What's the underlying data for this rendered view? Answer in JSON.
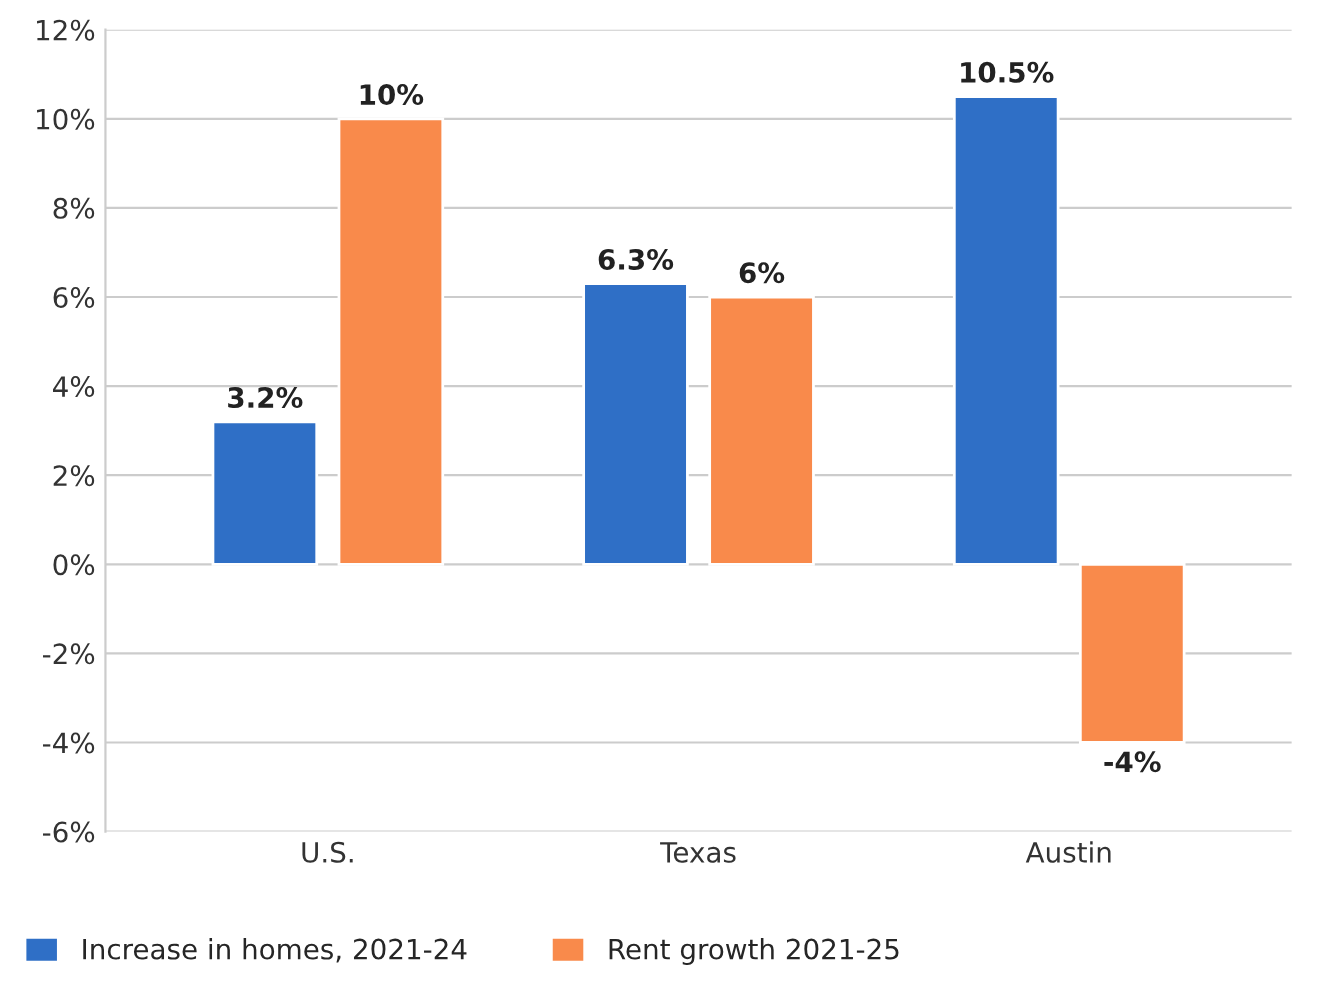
{
  "chart_data": {
    "type": "bar",
    "categories": [
      "U.S.",
      "Texas",
      "Austin"
    ],
    "series": [
      {
        "name": "Increase in homes, 2021-24",
        "color": "#2f6fc6",
        "values": [
          3.2,
          6.3,
          10.5
        ],
        "value_labels": [
          "3.2%",
          "6.3%",
          "10.5%"
        ]
      },
      {
        "name": "Rent growth 2021-25",
        "color": "#f98a4b",
        "values": [
          10,
          6,
          -4
        ],
        "value_labels": [
          "10%",
          "6%",
          "-4%"
        ]
      }
    ],
    "ylim": [
      -6,
      12
    ],
    "yticks": [
      {
        "value": -6,
        "label": "-6%"
      },
      {
        "value": -4,
        "label": "-4%"
      },
      {
        "value": -2,
        "label": "-2%"
      },
      {
        "value": 0,
        "label": "0%"
      },
      {
        "value": 2,
        "label": "2%"
      },
      {
        "value": 4,
        "label": "4%"
      },
      {
        "value": 6,
        "label": "6%"
      },
      {
        "value": 8,
        "label": "8%"
      },
      {
        "value": 10,
        "label": "10%"
      },
      {
        "value": 12,
        "label": "12%"
      }
    ],
    "grid": "y",
    "legend": "bottom left"
  }
}
